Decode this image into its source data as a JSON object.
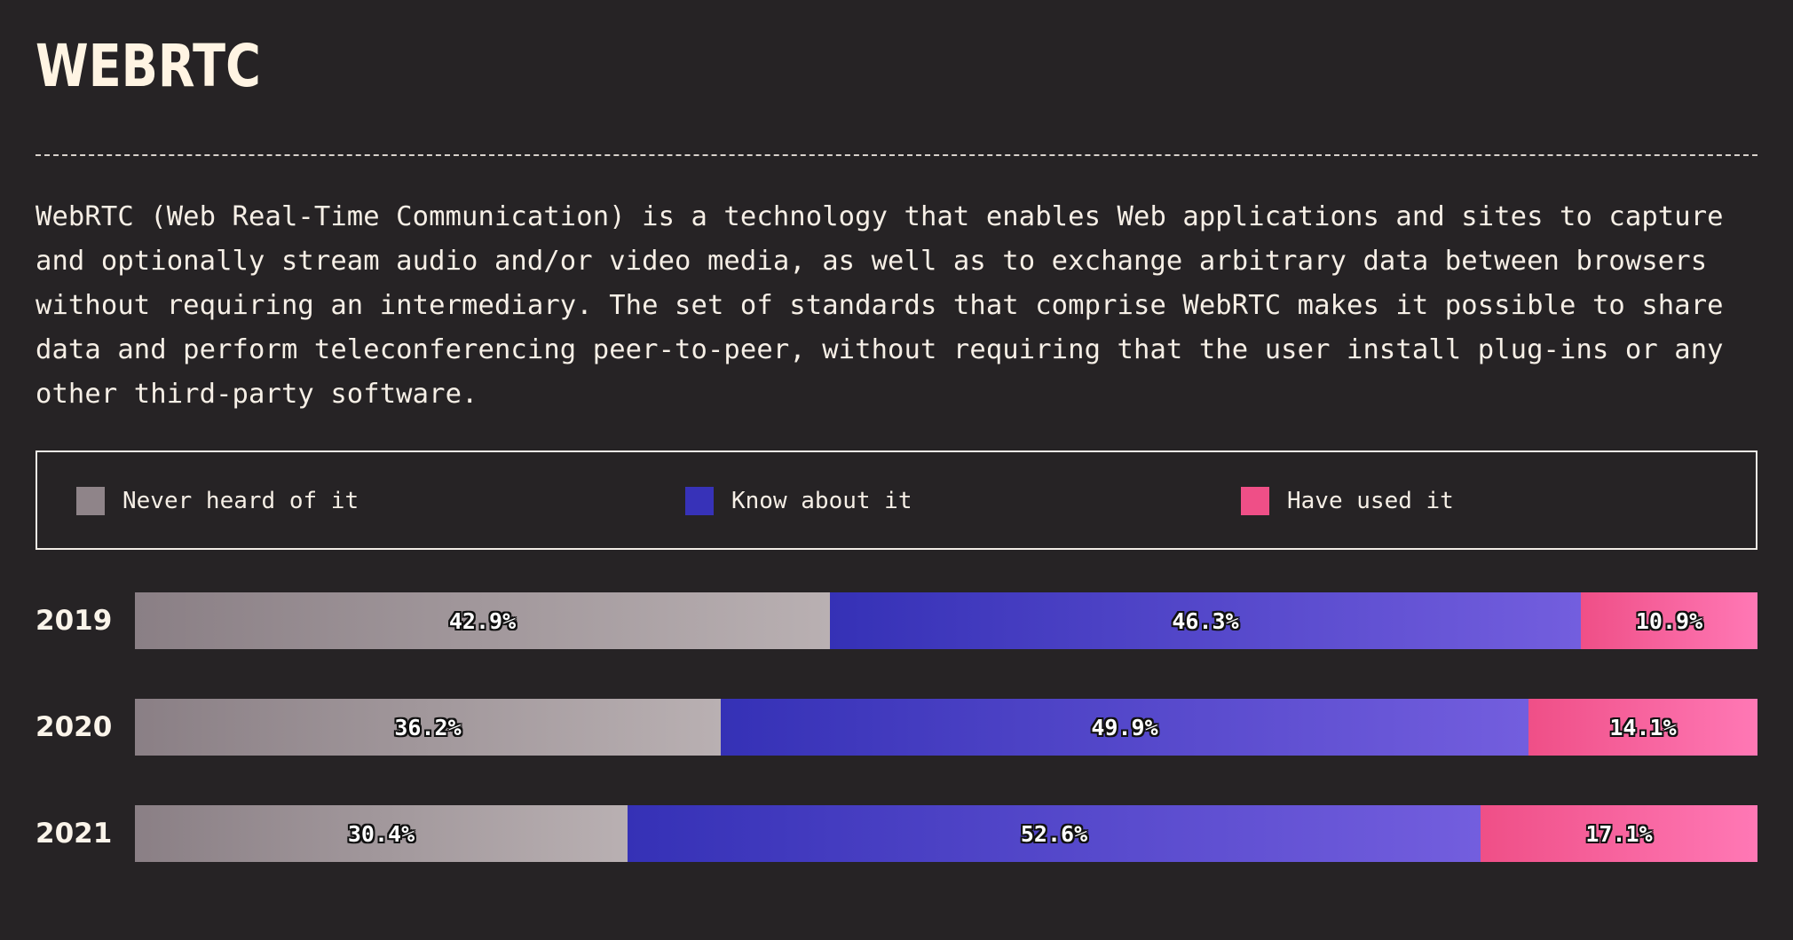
{
  "page": {
    "title": "WEBRTC",
    "description": "WebRTC (Web Real-Time Communication) is a technology that enables Web applications and sites to capture and optionally stream audio and/or video media, as well as to exchange arbitrary data between browsers without requiring an intermediary. The set of standards that comprise WebRTC makes it possible to share data and perform teleconferencing peer-to-peer, without requiring that the user install plug-ins or any other third-party software."
  },
  "legend": {
    "items": [
      {
        "label": "Never heard of it",
        "color": "#8f8489"
      },
      {
        "label": "Know about it",
        "color": "#3732b8"
      },
      {
        "label": "Have used it",
        "color": "#ef4f87"
      }
    ]
  },
  "chart_data": {
    "type": "bar",
    "orientation": "horizontal",
    "stacked": "100%",
    "categories": [
      "2019",
      "2020",
      "2021"
    ],
    "series": [
      {
        "name": "Never heard of it",
        "values": [
          42.9,
          36.2,
          30.4
        ],
        "labels": [
          "42.9%",
          "36.2%",
          "30.4%"
        ]
      },
      {
        "name": "Know about it",
        "values": [
          46.3,
          49.9,
          52.6
        ],
        "labels": [
          "46.3%",
          "49.9%",
          "52.6%"
        ]
      },
      {
        "name": "Have used it",
        "values": [
          10.9,
          14.1,
          17.1
        ],
        "labels": [
          "10.9%",
          "14.1%",
          "17.1%"
        ]
      }
    ],
    "title": "",
    "xlabel": "",
    "ylabel": "",
    "grid": false,
    "legend_position": "top"
  }
}
